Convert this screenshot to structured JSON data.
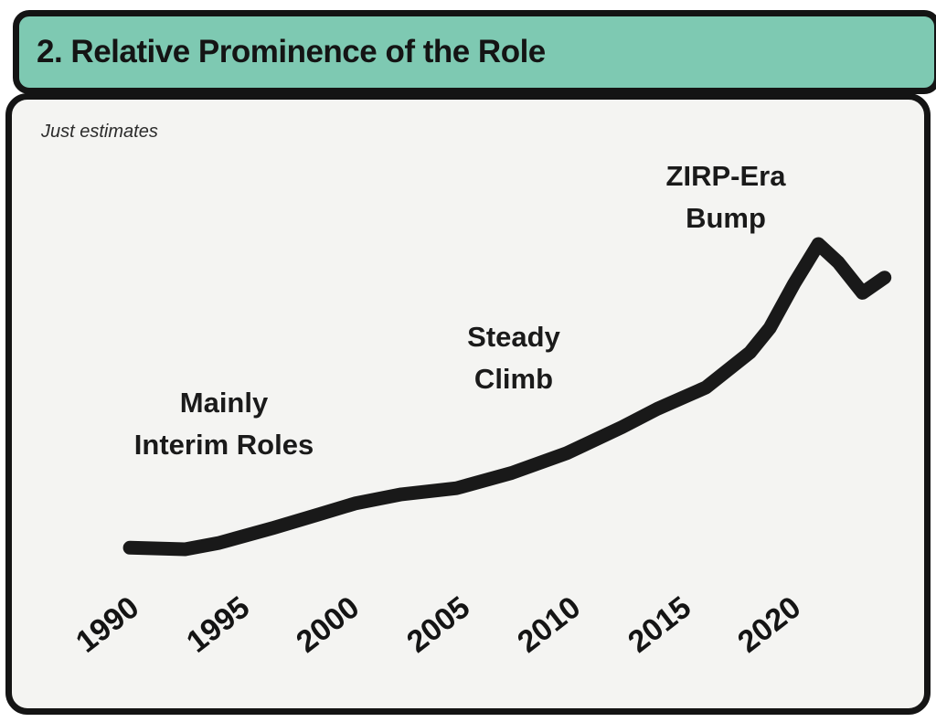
{
  "header": {
    "title": "2. Relative Prominence of the Role",
    "background": "#7ec9b2",
    "border_color": "#141414"
  },
  "panel": {
    "background": "#f4f4f2",
    "border_color": "#141414",
    "note": "Just estimates"
  },
  "chart_data": {
    "type": "line",
    "title": "2. Relative Prominence of the Role",
    "subtitle": "Just estimates",
    "xlabel": "",
    "ylabel": "",
    "x_ticks": [
      "1990",
      "1995",
      "2000",
      "2005",
      "2010",
      "2015",
      "2020"
    ],
    "x_range": [
      1989,
      2026
    ],
    "y_range": [
      0,
      105
    ],
    "grid": false,
    "legend": false,
    "line_color": "#191919",
    "line_width": 15,
    "series": [
      {
        "name": "relative-prominence",
        "points": [
          [
            1991.0,
            0.5
          ],
          [
            1993.5,
            0
          ],
          [
            1995.0,
            2
          ],
          [
            1997.5,
            7
          ],
          [
            1999.6,
            11.5
          ],
          [
            2001.2,
            15
          ],
          [
            2003.3,
            18
          ],
          [
            2005.8,
            20
          ],
          [
            2008.3,
            25
          ],
          [
            2010.8,
            31.5
          ],
          [
            2013.3,
            40
          ],
          [
            2014.9,
            46
          ],
          [
            2017.1,
            53
          ],
          [
            2019.1,
            64.5
          ],
          [
            2020.0,
            72.5
          ],
          [
            2021.1,
            87
          ],
          [
            2022.2,
            100
          ],
          [
            2023.1,
            94
          ],
          [
            2024.2,
            84
          ],
          [
            2025.2,
            89
          ]
        ]
      }
    ],
    "annotations": [
      {
        "lines": [
          "Mainly",
          "Interim Roles"
        ]
      },
      {
        "lines": [
          "Steady",
          "Climb"
        ]
      },
      {
        "lines": [
          "ZIRP-Era",
          "Bump"
        ]
      }
    ]
  }
}
